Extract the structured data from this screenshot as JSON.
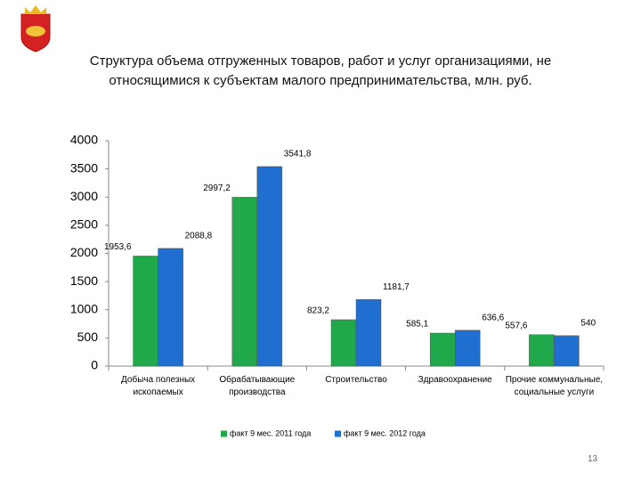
{
  "chart_data": {
    "type": "bar",
    "title": "Структура объема отгруженных товаров, работ и услуг организациями, не относящимися к субъектам малого предпринимательства, млн. руб.",
    "categories": [
      "Добыча полезных ископаемых",
      "Обрабатывающие производства",
      "Строительство",
      "Здравоохранение",
      "Прочие коммунальные, социальные услуги"
    ],
    "series": [
      {
        "name": "факт 9 мес. 2011 года",
        "color": "#20a84a",
        "values": [
          1953.6,
          2997.2,
          823.2,
          585.1,
          557.6
        ],
        "value_labels": [
          "1953,6",
          "2997,2",
          "823,2",
          "585,1",
          "557,6"
        ]
      },
      {
        "name": "факт 9 мес. 2012 года",
        "color": "#1f6fd0",
        "values": [
          2088.8,
          3541.8,
          1181.7,
          636.6,
          540
        ],
        "value_labels": [
          "2088,8",
          "3541,8",
          "1181,7",
          "636,6",
          "540"
        ]
      }
    ],
    "ylim": [
      0,
      4000
    ],
    "yticks": [
      0,
      500,
      1000,
      1500,
      2000,
      2500,
      3000,
      3500,
      4000
    ],
    "grid": false,
    "legend": "bottom"
  },
  "slide": {
    "page_number": "13"
  }
}
